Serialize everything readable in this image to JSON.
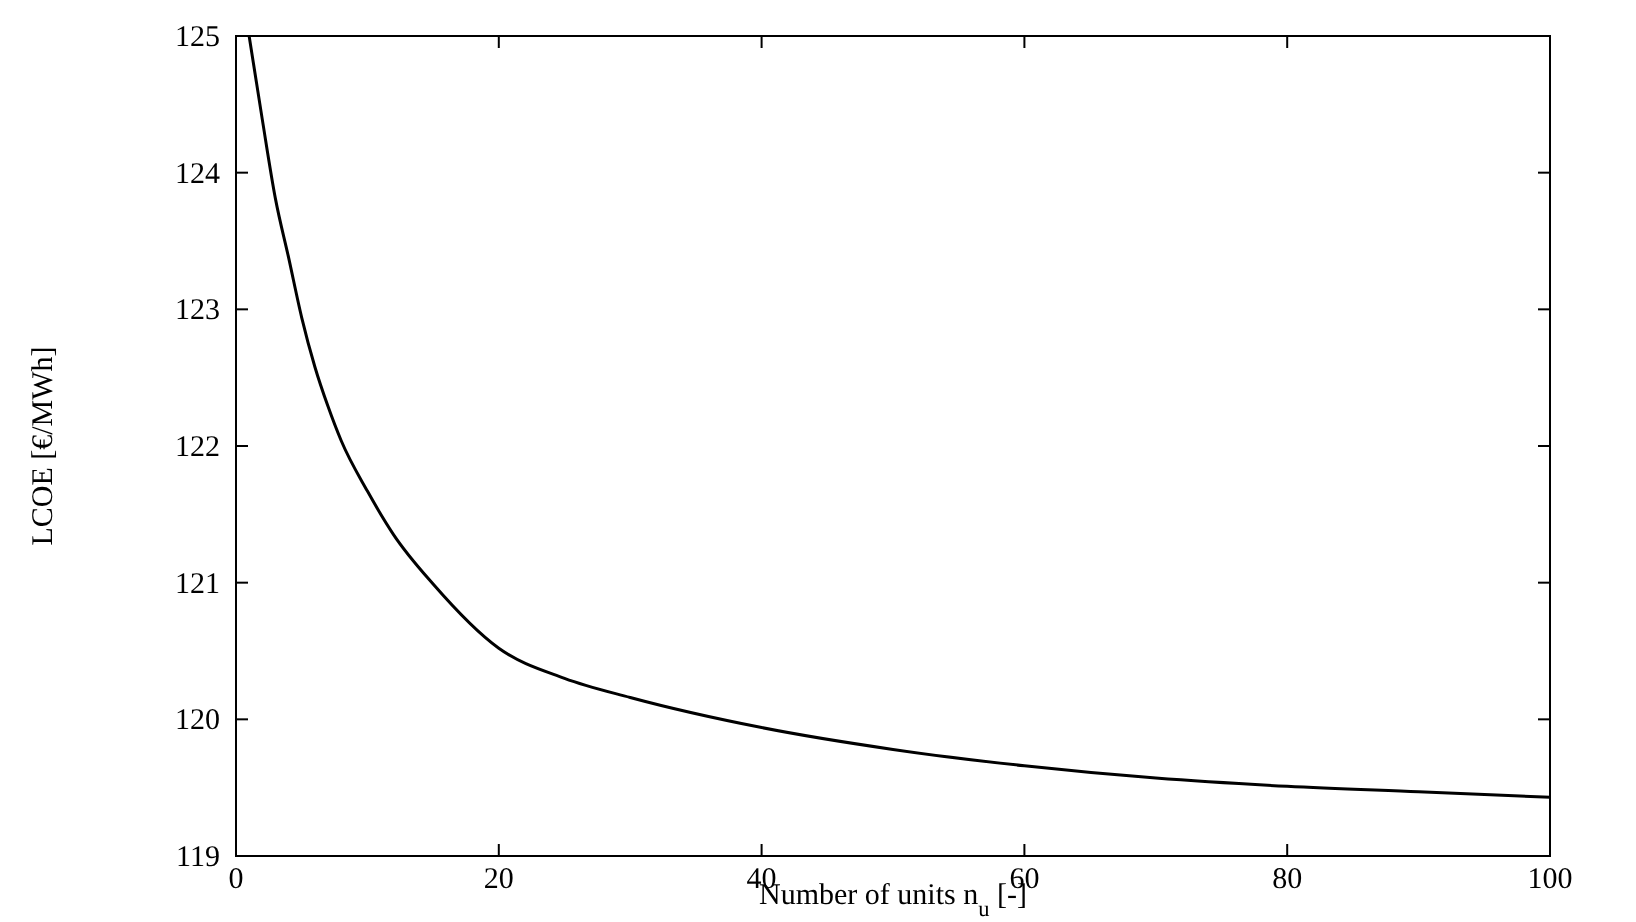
{
  "chart_data": {
    "type": "line",
    "xlabel": "Number of units n$_{u}$ [-]",
    "ylabel": "LCOE [€/MWh]",
    "x": [
      1,
      2,
      3,
      4,
      5,
      6,
      7,
      8,
      10,
      12,
      15,
      20,
      25,
      30,
      40,
      50,
      60,
      70,
      80,
      90,
      100
    ],
    "series": [
      {
        "color": "#000000",
        "values": [
          125,
          124.39,
          123.81,
          123.38,
          122.94,
          122.58,
          122.29,
          122.04,
          121.67,
          121.35,
          120.99,
          120.52,
          120.3,
          120.16,
          119.94,
          119.78,
          119.66,
          119.57,
          119.51,
          119.47,
          119.43
        ]
      }
    ],
    "xlim": [
      0,
      100
    ],
    "ylim": [
      119,
      125
    ],
    "xticks": [
      0,
      20,
      40,
      60,
      80,
      100
    ],
    "yticks": [
      119,
      120,
      121,
      122,
      123,
      124,
      125
    ],
    "grid": false,
    "line_style": "solid"
  }
}
